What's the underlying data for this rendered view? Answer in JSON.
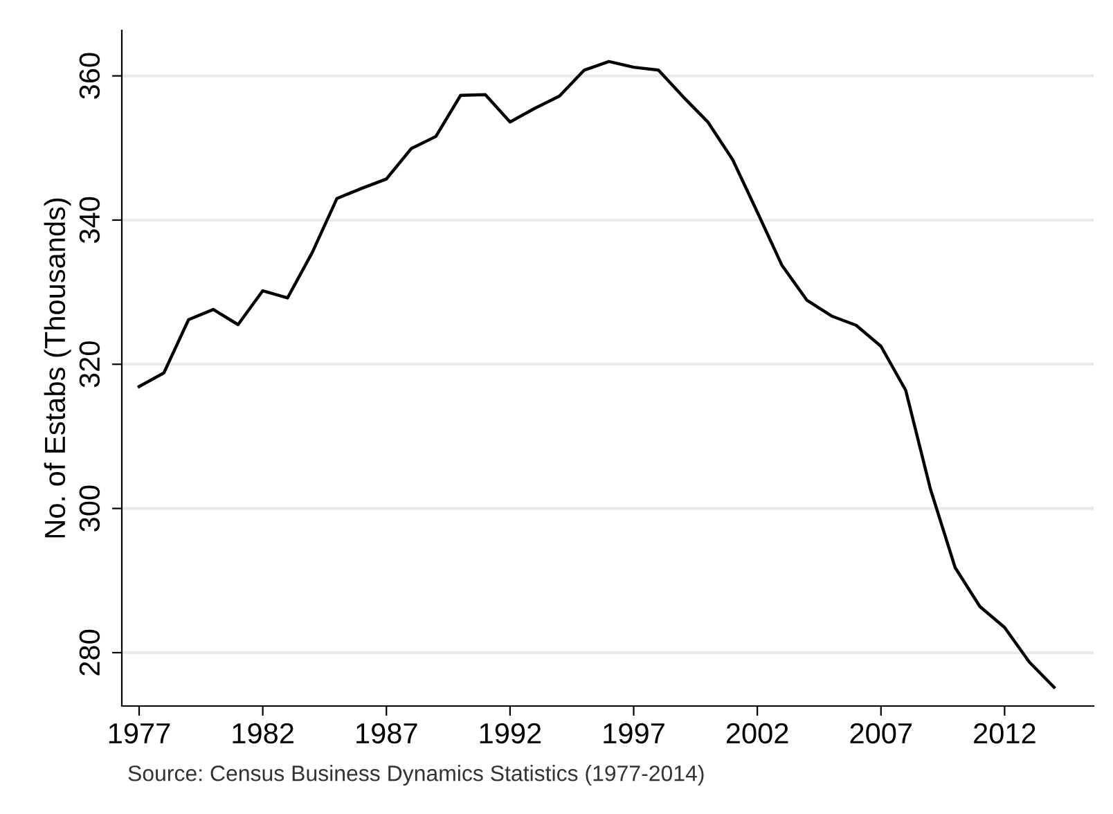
{
  "chart_data": {
    "type": "line",
    "ylabel": "No. of Estabs (Thousands)",
    "x": [
      1977,
      1978,
      1979,
      1980,
      1981,
      1982,
      1983,
      1984,
      1985,
      1986,
      1987,
      1988,
      1989,
      1990,
      1991,
      1992,
      1993,
      1994,
      1995,
      1996,
      1997,
      1998,
      1999,
      2000,
      2001,
      2002,
      2003,
      2004,
      2005,
      2006,
      2007,
      2008,
      2009,
      2010,
      2011,
      2012,
      2013,
      2014
    ],
    "series": [
      {
        "color": "#000000",
        "values": [
          316.9,
          318.8,
          326.2,
          327.6,
          325.5,
          330.2,
          329.2,
          335.5,
          343.0,
          344.4,
          345.7,
          349.9,
          351.6,
          357.3,
          357.4,
          353.6,
          355.5,
          357.2,
          360.8,
          362.0,
          361.2,
          360.8,
          357.1,
          353.6,
          348.4,
          341.1,
          333.7,
          328.9,
          326.7,
          325.4,
          322.5,
          316.4,
          302.7,
          291.8,
          286.4,
          283.5,
          278.7,
          275.2
        ]
      }
    ],
    "xlim": [
      1976.3,
      2015.6
    ],
    "ylim": [
      272.6,
      366.3
    ],
    "xticks": [
      1977,
      1982,
      1987,
      1992,
      1997,
      2002,
      2007,
      2012
    ],
    "yticks": [
      280,
      300,
      320,
      340,
      360
    ],
    "grid": "y",
    "legend": false,
    "marker": "none",
    "line_style": "solid",
    "annotations": [
      "Source: Census Business Dynamics Statistics (1977-2014)"
    ]
  }
}
